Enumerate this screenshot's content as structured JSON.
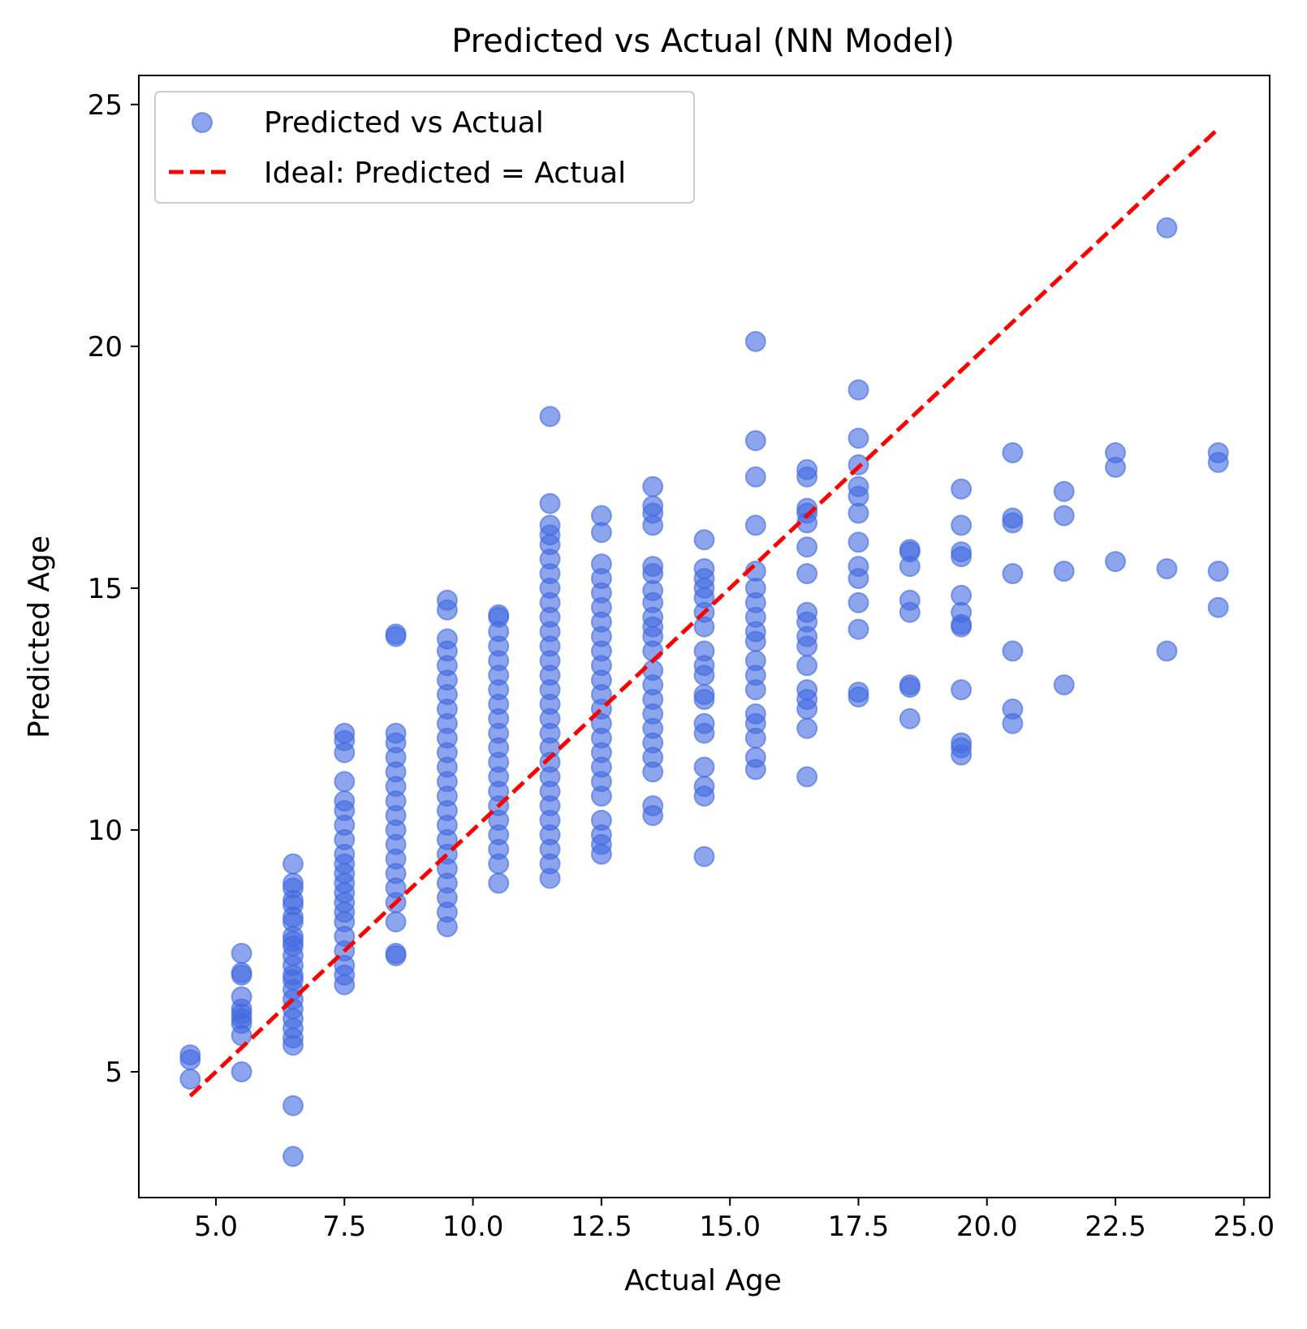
{
  "chart_data": {
    "type": "scatter",
    "title": "Predicted vs Actual (NN Model)",
    "xlabel": "Actual Age",
    "ylabel": "Predicted Age",
    "xlim": [
      3.5,
      25.5
    ],
    "ylim": [
      2.4,
      25.6
    ],
    "xticks": [
      5.0,
      7.5,
      10.0,
      12.5,
      15.0,
      17.5,
      20.0,
      22.5,
      25.0
    ],
    "xtick_labels": [
      "5.0",
      "7.5",
      "10.0",
      "12.5",
      "15.0",
      "17.5",
      "20.0",
      "22.5",
      "25.0"
    ],
    "yticks": [
      5,
      10,
      15,
      20,
      25
    ],
    "ytick_labels": [
      "5",
      "10",
      "15",
      "20",
      "25"
    ],
    "grid": false,
    "legend_position": "top-left",
    "series": [
      {
        "name": "Predicted vs Actual",
        "kind": "scatter",
        "color": "#4169e1",
        "alpha": 0.6,
        "points": [
          [
            4.5,
            5.35
          ],
          [
            4.5,
            5.25
          ],
          [
            4.5,
            4.85
          ],
          [
            5.5,
            7.45
          ],
          [
            5.5,
            7.05
          ],
          [
            5.5,
            7.0
          ],
          [
            5.5,
            6.55
          ],
          [
            5.5,
            6.3
          ],
          [
            5.5,
            6.2
          ],
          [
            5.5,
            6.1
          ],
          [
            5.5,
            6.0
          ],
          [
            5.5,
            5.75
          ],
          [
            5.5,
            5.0
          ],
          [
            6.5,
            9.3
          ],
          [
            6.5,
            8.9
          ],
          [
            6.5,
            8.8
          ],
          [
            6.5,
            8.55
          ],
          [
            6.5,
            8.45
          ],
          [
            6.5,
            8.2
          ],
          [
            6.5,
            8.1
          ],
          [
            6.5,
            7.8
          ],
          [
            6.5,
            7.7
          ],
          [
            6.5,
            7.6
          ],
          [
            6.5,
            7.4
          ],
          [
            6.5,
            7.2
          ],
          [
            6.5,
            7.0
          ],
          [
            6.5,
            6.9
          ],
          [
            6.5,
            6.7
          ],
          [
            6.5,
            6.5
          ],
          [
            6.5,
            6.3
          ],
          [
            6.5,
            6.1
          ],
          [
            6.5,
            5.9
          ],
          [
            6.5,
            5.7
          ],
          [
            6.5,
            5.55
          ],
          [
            6.5,
            4.3
          ],
          [
            6.5,
            3.25
          ],
          [
            7.5,
            12.0
          ],
          [
            7.5,
            11.85
          ],
          [
            7.5,
            11.6
          ],
          [
            7.5,
            11.0
          ],
          [
            7.5,
            10.6
          ],
          [
            7.5,
            10.4
          ],
          [
            7.5,
            10.1
          ],
          [
            7.5,
            9.8
          ],
          [
            7.5,
            9.5
          ],
          [
            7.5,
            9.3
          ],
          [
            7.5,
            9.1
          ],
          [
            7.5,
            8.9
          ],
          [
            7.5,
            8.7
          ],
          [
            7.5,
            8.5
          ],
          [
            7.5,
            8.3
          ],
          [
            7.5,
            8.1
          ],
          [
            7.5,
            7.8
          ],
          [
            7.5,
            7.5
          ],
          [
            7.5,
            7.2
          ],
          [
            7.5,
            7.0
          ],
          [
            7.5,
            6.8
          ],
          [
            8.5,
            14.05
          ],
          [
            8.5,
            14.0
          ],
          [
            8.5,
            12.0
          ],
          [
            8.5,
            11.8
          ],
          [
            8.5,
            11.5
          ],
          [
            8.5,
            11.2
          ],
          [
            8.5,
            10.9
          ],
          [
            8.5,
            10.6
          ],
          [
            8.5,
            10.3
          ],
          [
            8.5,
            10.0
          ],
          [
            8.5,
            9.7
          ],
          [
            8.5,
            9.4
          ],
          [
            8.5,
            9.1
          ],
          [
            8.5,
            8.8
          ],
          [
            8.5,
            8.5
          ],
          [
            8.5,
            8.1
          ],
          [
            8.5,
            7.45
          ],
          [
            8.5,
            7.4
          ],
          [
            9.5,
            14.75
          ],
          [
            9.5,
            14.55
          ],
          [
            9.5,
            13.95
          ],
          [
            9.5,
            13.7
          ],
          [
            9.5,
            13.4
          ],
          [
            9.5,
            13.1
          ],
          [
            9.5,
            12.8
          ],
          [
            9.5,
            12.5
          ],
          [
            9.5,
            12.2
          ],
          [
            9.5,
            11.9
          ],
          [
            9.5,
            11.6
          ],
          [
            9.5,
            11.3
          ],
          [
            9.5,
            11.0
          ],
          [
            9.5,
            10.7
          ],
          [
            9.5,
            10.4
          ],
          [
            9.5,
            10.1
          ],
          [
            9.5,
            9.8
          ],
          [
            9.5,
            9.5
          ],
          [
            9.5,
            9.2
          ],
          [
            9.5,
            8.9
          ],
          [
            9.5,
            8.6
          ],
          [
            9.5,
            8.3
          ],
          [
            9.5,
            8.0
          ],
          [
            10.5,
            14.45
          ],
          [
            10.5,
            14.4
          ],
          [
            10.5,
            14.1
          ],
          [
            10.5,
            13.8
          ],
          [
            10.5,
            13.5
          ],
          [
            10.5,
            13.2
          ],
          [
            10.5,
            12.9
          ],
          [
            10.5,
            12.6
          ],
          [
            10.5,
            12.3
          ],
          [
            10.5,
            12.0
          ],
          [
            10.5,
            11.7
          ],
          [
            10.5,
            11.4
          ],
          [
            10.5,
            11.1
          ],
          [
            10.5,
            10.8
          ],
          [
            10.5,
            10.5
          ],
          [
            10.5,
            10.2
          ],
          [
            10.5,
            9.9
          ],
          [
            10.5,
            9.6
          ],
          [
            10.5,
            9.3
          ],
          [
            10.5,
            8.9
          ],
          [
            11.5,
            18.55
          ],
          [
            11.5,
            16.75
          ],
          [
            11.5,
            16.3
          ],
          [
            11.5,
            16.1
          ],
          [
            11.5,
            15.9
          ],
          [
            11.5,
            15.6
          ],
          [
            11.5,
            15.3
          ],
          [
            11.5,
            15.0
          ],
          [
            11.5,
            14.7
          ],
          [
            11.5,
            14.4
          ],
          [
            11.5,
            14.1
          ],
          [
            11.5,
            13.8
          ],
          [
            11.5,
            13.5
          ],
          [
            11.5,
            13.2
          ],
          [
            11.5,
            12.9
          ],
          [
            11.5,
            12.6
          ],
          [
            11.5,
            12.3
          ],
          [
            11.5,
            12.0
          ],
          [
            11.5,
            11.7
          ],
          [
            11.5,
            11.4
          ],
          [
            11.5,
            11.1
          ],
          [
            11.5,
            10.8
          ],
          [
            11.5,
            10.5
          ],
          [
            11.5,
            10.2
          ],
          [
            11.5,
            9.9
          ],
          [
            11.5,
            9.6
          ],
          [
            11.5,
            9.3
          ],
          [
            11.5,
            9.0
          ],
          [
            12.5,
            16.5
          ],
          [
            12.5,
            16.15
          ],
          [
            12.5,
            15.5
          ],
          [
            12.5,
            15.2
          ],
          [
            12.5,
            14.9
          ],
          [
            12.5,
            14.6
          ],
          [
            12.5,
            14.3
          ],
          [
            12.5,
            14.0
          ],
          [
            12.5,
            13.7
          ],
          [
            12.5,
            13.4
          ],
          [
            12.5,
            13.1
          ],
          [
            12.5,
            12.8
          ],
          [
            12.5,
            12.5
          ],
          [
            12.5,
            12.2
          ],
          [
            12.5,
            11.9
          ],
          [
            12.5,
            11.6
          ],
          [
            12.5,
            11.3
          ],
          [
            12.5,
            11.0
          ],
          [
            12.5,
            10.7
          ],
          [
            12.5,
            10.2
          ],
          [
            12.5,
            9.9
          ],
          [
            12.5,
            9.7
          ],
          [
            12.5,
            9.5
          ],
          [
            13.5,
            17.1
          ],
          [
            13.5,
            16.7
          ],
          [
            13.5,
            16.55
          ],
          [
            13.5,
            16.3
          ],
          [
            13.5,
            15.45
          ],
          [
            13.5,
            15.3
          ],
          [
            13.5,
            14.95
          ],
          [
            13.5,
            14.7
          ],
          [
            13.5,
            14.4
          ],
          [
            13.5,
            14.2
          ],
          [
            13.5,
            14.0
          ],
          [
            13.5,
            13.7
          ],
          [
            13.5,
            13.3
          ],
          [
            13.5,
            13.0
          ],
          [
            13.5,
            12.7
          ],
          [
            13.5,
            12.4
          ],
          [
            13.5,
            12.1
          ],
          [
            13.5,
            11.8
          ],
          [
            13.5,
            11.5
          ],
          [
            13.5,
            11.2
          ],
          [
            13.5,
            10.5
          ],
          [
            13.5,
            10.3
          ],
          [
            14.5,
            16.0
          ],
          [
            14.5,
            15.4
          ],
          [
            14.5,
            15.2
          ],
          [
            14.5,
            15.0
          ],
          [
            14.5,
            14.8
          ],
          [
            14.5,
            14.5
          ],
          [
            14.5,
            14.2
          ],
          [
            14.5,
            13.7
          ],
          [
            14.5,
            13.4
          ],
          [
            14.5,
            13.2
          ],
          [
            14.5,
            12.8
          ],
          [
            14.5,
            12.7
          ],
          [
            14.5,
            12.2
          ],
          [
            14.5,
            12.0
          ],
          [
            14.5,
            11.3
          ],
          [
            14.5,
            10.9
          ],
          [
            14.5,
            10.7
          ],
          [
            14.5,
            9.45
          ],
          [
            15.5,
            20.1
          ],
          [
            15.5,
            18.05
          ],
          [
            15.5,
            17.3
          ],
          [
            15.5,
            16.3
          ],
          [
            15.5,
            15.35
          ],
          [
            15.5,
            15.0
          ],
          [
            15.5,
            14.7
          ],
          [
            15.5,
            14.4
          ],
          [
            15.5,
            14.1
          ],
          [
            15.5,
            13.9
          ],
          [
            15.5,
            13.5
          ],
          [
            15.5,
            13.2
          ],
          [
            15.5,
            12.9
          ],
          [
            15.5,
            12.4
          ],
          [
            15.5,
            12.2
          ],
          [
            15.5,
            11.9
          ],
          [
            15.5,
            11.5
          ],
          [
            15.5,
            11.25
          ],
          [
            16.5,
            17.45
          ],
          [
            16.5,
            17.3
          ],
          [
            16.5,
            16.65
          ],
          [
            16.5,
            16.55
          ],
          [
            16.5,
            16.35
          ],
          [
            16.5,
            15.85
          ],
          [
            16.5,
            15.3
          ],
          [
            16.5,
            14.5
          ],
          [
            16.5,
            14.3
          ],
          [
            16.5,
            14.0
          ],
          [
            16.5,
            13.8
          ],
          [
            16.5,
            13.4
          ],
          [
            16.5,
            12.9
          ],
          [
            16.5,
            12.7
          ],
          [
            16.5,
            12.5
          ],
          [
            16.5,
            12.1
          ],
          [
            16.5,
            11.1
          ],
          [
            17.5,
            19.1
          ],
          [
            17.5,
            18.1
          ],
          [
            17.5,
            17.55
          ],
          [
            17.5,
            17.1
          ],
          [
            17.5,
            16.9
          ],
          [
            17.5,
            16.55
          ],
          [
            17.5,
            15.95
          ],
          [
            17.5,
            15.45
          ],
          [
            17.5,
            15.2
          ],
          [
            17.5,
            14.7
          ],
          [
            17.5,
            14.15
          ],
          [
            17.5,
            12.85
          ],
          [
            17.5,
            12.75
          ],
          [
            18.5,
            15.8
          ],
          [
            18.5,
            15.75
          ],
          [
            18.5,
            15.45
          ],
          [
            18.5,
            14.75
          ],
          [
            18.5,
            14.5
          ],
          [
            18.5,
            13.0
          ],
          [
            18.5,
            12.95
          ],
          [
            18.5,
            12.3
          ],
          [
            19.5,
            17.05
          ],
          [
            19.5,
            16.3
          ],
          [
            19.5,
            15.75
          ],
          [
            19.5,
            15.65
          ],
          [
            19.5,
            14.85
          ],
          [
            19.5,
            14.5
          ],
          [
            19.5,
            14.25
          ],
          [
            19.5,
            14.2
          ],
          [
            19.5,
            12.9
          ],
          [
            19.5,
            11.8
          ],
          [
            19.5,
            11.7
          ],
          [
            19.5,
            11.55
          ],
          [
            20.5,
            17.8
          ],
          [
            20.5,
            16.45
          ],
          [
            20.5,
            16.35
          ],
          [
            20.5,
            15.3
          ],
          [
            20.5,
            13.7
          ],
          [
            20.5,
            12.5
          ],
          [
            20.5,
            12.2
          ],
          [
            21.5,
            17.0
          ],
          [
            21.5,
            16.5
          ],
          [
            21.5,
            15.35
          ],
          [
            21.5,
            13.0
          ],
          [
            22.5,
            17.8
          ],
          [
            22.5,
            17.5
          ],
          [
            22.5,
            15.55
          ],
          [
            23.5,
            22.45
          ],
          [
            23.5,
            15.4
          ],
          [
            23.5,
            13.7
          ],
          [
            24.5,
            17.8
          ],
          [
            24.5,
            17.6
          ],
          [
            24.5,
            15.35
          ],
          [
            24.5,
            14.6
          ]
        ]
      },
      {
        "name": "Ideal: Predicted = Actual",
        "kind": "line",
        "color": "#ff0000",
        "linestyle": "dashed",
        "x": [
          4.5,
          24.5
        ],
        "y": [
          4.5,
          24.5
        ]
      }
    ]
  }
}
